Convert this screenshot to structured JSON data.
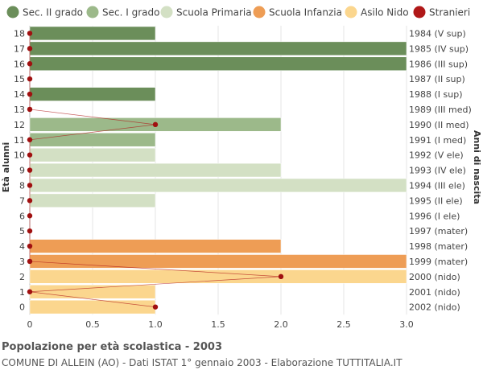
{
  "chart_data": {
    "type": "bar",
    "orientation": "horizontal",
    "title": "Popolazione per età scolastica - 2003",
    "subtitle": "COMUNE DI ALLEIN (AO) - Dati ISTAT 1° gennaio 2003 - Elaborazione TUTTITALIA.IT",
    "ylabel_left": "Età alunni",
    "ylabel_right": "Anni di nascita",
    "xlim": [
      0,
      3
    ],
    "xticks": [
      "0",
      "0.5",
      "1.0",
      "1.5",
      "2.0",
      "2.5",
      "3.0"
    ],
    "grid": true,
    "legend_position": "top",
    "legend": [
      {
        "name": "Sec. II grado",
        "color": "#6b8e5a"
      },
      {
        "name": "Sec. I grado",
        "color": "#9cb98a"
      },
      {
        "name": "Scuola Primaria",
        "color": "#d3e0c4"
      },
      {
        "name": "Scuola Infanzia",
        "color": "#ee9d55"
      },
      {
        "name": "Asilo Nido",
        "color": "#fbd68e"
      },
      {
        "name": "Stranieri",
        "color": "#b01818"
      }
    ],
    "rows": [
      {
        "age": "18",
        "birth": "1984 (V sup)",
        "value": 1,
        "school": "Sec. II grado",
        "stranieri": 0
      },
      {
        "age": "17",
        "birth": "1985 (IV sup)",
        "value": 3,
        "school": "Sec. II grado",
        "stranieri": 0
      },
      {
        "age": "16",
        "birth": "1986 (III sup)",
        "value": 3,
        "school": "Sec. II grado",
        "stranieri": 0
      },
      {
        "age": "15",
        "birth": "1987 (II sup)",
        "value": 0,
        "school": "Sec. II grado",
        "stranieri": 0
      },
      {
        "age": "14",
        "birth": "1988 (I sup)",
        "value": 1,
        "school": "Sec. II grado",
        "stranieri": 0
      },
      {
        "age": "13",
        "birth": "1989 (III med)",
        "value": 0,
        "school": "Sec. I grado",
        "stranieri": 0
      },
      {
        "age": "12",
        "birth": "1990 (II med)",
        "value": 2,
        "school": "Sec. I grado",
        "stranieri": 1
      },
      {
        "age": "11",
        "birth": "1991 (I med)",
        "value": 1,
        "school": "Sec. I grado",
        "stranieri": 0
      },
      {
        "age": "10",
        "birth": "1992 (V ele)",
        "value": 1,
        "school": "Scuola Primaria",
        "stranieri": 0
      },
      {
        "age": "9",
        "birth": "1993 (IV ele)",
        "value": 2,
        "school": "Scuola Primaria",
        "stranieri": 0
      },
      {
        "age": "8",
        "birth": "1994 (III ele)",
        "value": 3,
        "school": "Scuola Primaria",
        "stranieri": 0
      },
      {
        "age": "7",
        "birth": "1995 (II ele)",
        "value": 1,
        "school": "Scuola Primaria",
        "stranieri": 0
      },
      {
        "age": "6",
        "birth": "1996 (I ele)",
        "value": 0,
        "school": "Scuola Primaria",
        "stranieri": 0
      },
      {
        "age": "5",
        "birth": "1997 (mater)",
        "value": 0,
        "school": "Scuola Infanzia",
        "stranieri": 0
      },
      {
        "age": "4",
        "birth": "1998 (mater)",
        "value": 2,
        "school": "Scuola Infanzia",
        "stranieri": 0
      },
      {
        "age": "3",
        "birth": "1999 (mater)",
        "value": 3,
        "school": "Scuola Infanzia",
        "stranieri": 0
      },
      {
        "age": "2",
        "birth": "2000 (nido)",
        "value": 3,
        "school": "Asilo Nido",
        "stranieri": 2
      },
      {
        "age": "1",
        "birth": "2001 (nido)",
        "value": 1,
        "school": "Asilo Nido",
        "stranieri": 0
      },
      {
        "age": "0",
        "birth": "2002 (nido)",
        "value": 1,
        "school": "Asilo Nido",
        "stranieri": 1
      }
    ]
  }
}
